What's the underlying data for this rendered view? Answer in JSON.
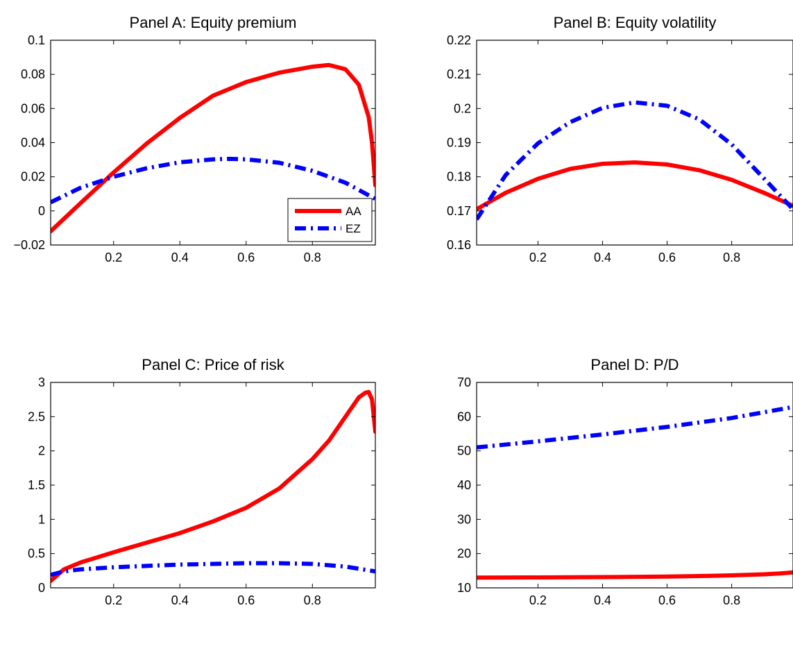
{
  "chart_data": [
    {
      "id": "A",
      "type": "line",
      "title": "Panel A: Equity premium",
      "xlim": [
        0.01,
        0.99
      ],
      "ylim": [
        -0.02,
        0.1
      ],
      "xticks": [
        0.2,
        0.4,
        0.6,
        0.8
      ],
      "xtick_labels": [
        "0.2",
        "0.4",
        "0.6",
        "0.8"
      ],
      "yticks": [
        -0.02,
        0,
        0.02,
        0.04,
        0.06,
        0.08,
        0.1
      ],
      "ytick_labels": [
        "−0.02",
        "0",
        "0.02",
        "0.04",
        "0.06",
        "0.08",
        "0.1"
      ],
      "legend": {
        "position": "bottom-right",
        "entries": [
          "AA",
          "EZ"
        ]
      },
      "series": [
        {
          "name": "AA",
          "color": "#ff0000",
          "style": "solid",
          "x": [
            0.01,
            0.1,
            0.2,
            0.3,
            0.4,
            0.5,
            0.6,
            0.7,
            0.8,
            0.85,
            0.9,
            0.94,
            0.97,
            0.98,
            0.99
          ],
          "y": [
            -0.012,
            0.0045,
            0.0225,
            0.0395,
            0.0545,
            0.0675,
            0.0755,
            0.081,
            0.0845,
            0.0855,
            0.083,
            0.074,
            0.055,
            0.04,
            0.015
          ]
        },
        {
          "name": "EZ",
          "color": "#0000ff",
          "style": "dashdot",
          "x": [
            0.01,
            0.1,
            0.2,
            0.3,
            0.4,
            0.5,
            0.55,
            0.6,
            0.7,
            0.8,
            0.9,
            0.99
          ],
          "y": [
            0.005,
            0.0135,
            0.02,
            0.025,
            0.0285,
            0.0302,
            0.0305,
            0.0302,
            0.0282,
            0.0235,
            0.0165,
            0.007
          ]
        }
      ]
    },
    {
      "id": "B",
      "type": "line",
      "title": "Panel B: Equity volatility",
      "xlim": [
        0.01,
        0.99
      ],
      "ylim": [
        0.16,
        0.22
      ],
      "xticks": [
        0.2,
        0.4,
        0.6,
        0.8
      ],
      "xtick_labels": [
        "0.2",
        "0.4",
        "0.6",
        "0.8"
      ],
      "yticks": [
        0.16,
        0.17,
        0.18,
        0.19,
        0.2,
        0.21,
        0.22
      ],
      "ytick_labels": [
        "0.16",
        "0.17",
        "0.18",
        "0.19",
        "0.2",
        "0.21",
        "0.22"
      ],
      "series": [
        {
          "name": "AA",
          "color": "#ff0000",
          "style": "solid",
          "x": [
            0.01,
            0.1,
            0.2,
            0.3,
            0.4,
            0.5,
            0.6,
            0.7,
            0.8,
            0.9,
            0.99
          ],
          "y": [
            0.1705,
            0.1753,
            0.1794,
            0.1823,
            0.1838,
            0.1842,
            0.1836,
            0.1819,
            0.1791,
            0.1753,
            0.1715
          ]
        },
        {
          "name": "EZ",
          "color": "#0000ff",
          "style": "dashdot",
          "x": [
            0.01,
            0.1,
            0.2,
            0.3,
            0.4,
            0.5,
            0.6,
            0.7,
            0.8,
            0.9,
            0.99
          ],
          "y": [
            0.1675,
            0.1805,
            0.1898,
            0.196,
            0.2002,
            0.2018,
            0.2008,
            0.1968,
            0.1895,
            0.1795,
            0.1705
          ]
        }
      ]
    },
    {
      "id": "C",
      "type": "line",
      "title": "Panel C: Price of risk",
      "xlim": [
        0.01,
        0.99
      ],
      "ylim": [
        0,
        3
      ],
      "xticks": [
        0.2,
        0.4,
        0.6,
        0.8
      ],
      "xtick_labels": [
        "0.2",
        "0.4",
        "0.6",
        "0.8"
      ],
      "yticks": [
        0,
        0.5,
        1,
        1.5,
        2,
        2.5,
        3
      ],
      "ytick_labels": [
        "0",
        "0.5",
        "1",
        "1.5",
        "2",
        "2.5",
        "3"
      ],
      "series": [
        {
          "name": "AA",
          "color": "#ff0000",
          "style": "solid",
          "x": [
            0.01,
            0.05,
            0.1,
            0.2,
            0.3,
            0.4,
            0.5,
            0.6,
            0.7,
            0.8,
            0.85,
            0.9,
            0.94,
            0.96,
            0.97,
            0.98,
            0.99
          ],
          "y": [
            0.1,
            0.27,
            0.37,
            0.52,
            0.66,
            0.8,
            0.97,
            1.17,
            1.45,
            1.88,
            2.15,
            2.5,
            2.78,
            2.85,
            2.86,
            2.75,
            2.28
          ]
        },
        {
          "name": "EZ",
          "color": "#0000ff",
          "style": "dashdot",
          "x": [
            0.01,
            0.05,
            0.1,
            0.2,
            0.3,
            0.4,
            0.5,
            0.6,
            0.7,
            0.8,
            0.9,
            0.99
          ],
          "y": [
            0.19,
            0.24,
            0.27,
            0.3,
            0.32,
            0.34,
            0.35,
            0.36,
            0.36,
            0.35,
            0.31,
            0.24
          ]
        }
      ]
    },
    {
      "id": "D",
      "type": "line",
      "title": "Panel D: P/D",
      "xlim": [
        0.01,
        0.99
      ],
      "ylim": [
        10,
        70
      ],
      "xticks": [
        0.2,
        0.4,
        0.6,
        0.8
      ],
      "xtick_labels": [
        "0.2",
        "0.4",
        "0.6",
        "0.8"
      ],
      "yticks": [
        10,
        20,
        30,
        40,
        50,
        60,
        70
      ],
      "ytick_labels": [
        "10",
        "20",
        "30",
        "40",
        "50",
        "60",
        "70"
      ],
      "series": [
        {
          "name": "AA",
          "color": "#ff0000",
          "style": "solid",
          "x": [
            0.01,
            0.2,
            0.4,
            0.6,
            0.7,
            0.8,
            0.9,
            0.95,
            0.99
          ],
          "y": [
            13.0,
            13.05,
            13.15,
            13.3,
            13.45,
            13.65,
            13.95,
            14.2,
            14.5
          ]
        },
        {
          "name": "EZ",
          "color": "#0000ff",
          "style": "dashdot",
          "x": [
            0.01,
            0.2,
            0.4,
            0.6,
            0.8,
            0.99
          ],
          "y": [
            51.0,
            52.8,
            54.8,
            57.0,
            59.6,
            62.8
          ]
        }
      ]
    }
  ]
}
